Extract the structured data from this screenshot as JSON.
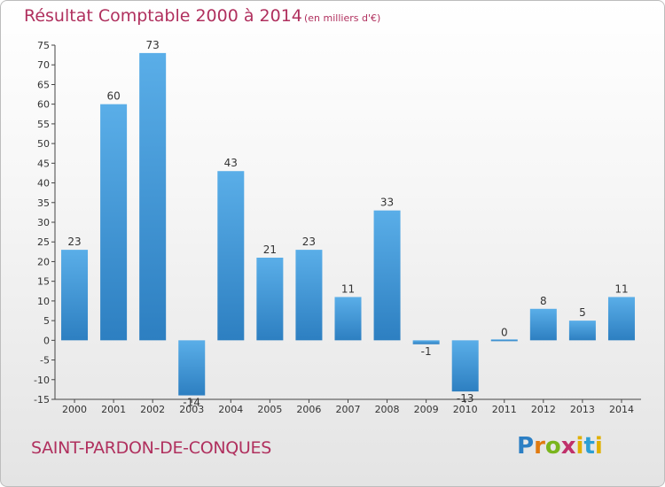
{
  "header": {
    "title": "Résultat Comptable 2000 à 2014",
    "unit": "(en milliers d'€)"
  },
  "footer": {
    "commune": "SAINT-PARDON-DE-CONQUES",
    "logo": {
      "letters": [
        "P",
        "r",
        "o",
        "x",
        "i",
        "t",
        "i"
      ]
    }
  },
  "colors": {
    "title": "#b0305e",
    "bar_light": "#5aaee8",
    "bar_dark": "#2d7fc1",
    "axis": "#444444"
  },
  "chart_data": {
    "type": "bar",
    "title": "Résultat Comptable 2000 à 2014",
    "subtitle": "(en milliers d'€)",
    "xlabel": "",
    "ylabel": "",
    "categories": [
      "2000",
      "2001",
      "2002",
      "2003",
      "2004",
      "2005",
      "2006",
      "2007",
      "2008",
      "2009",
      "2010",
      "2011",
      "2012",
      "2013",
      "2014"
    ],
    "values": [
      23,
      60,
      73,
      -14,
      43,
      21,
      23,
      11,
      33,
      -1,
      -13,
      0,
      8,
      5,
      11
    ],
    "value_labels": [
      "23",
      "60",
      "73",
      "-14",
      "43",
      "21",
      "23",
      "11",
      "33",
      "-1",
      "-13",
      "0",
      "8",
      "5",
      "11"
    ],
    "ylim": [
      -15,
      75
    ],
    "yticks": [
      75,
      70,
      65,
      60,
      55,
      50,
      45,
      40,
      35,
      30,
      25,
      20,
      15,
      10,
      5,
      0,
      -5,
      -10,
      -15
    ],
    "grid": false
  }
}
